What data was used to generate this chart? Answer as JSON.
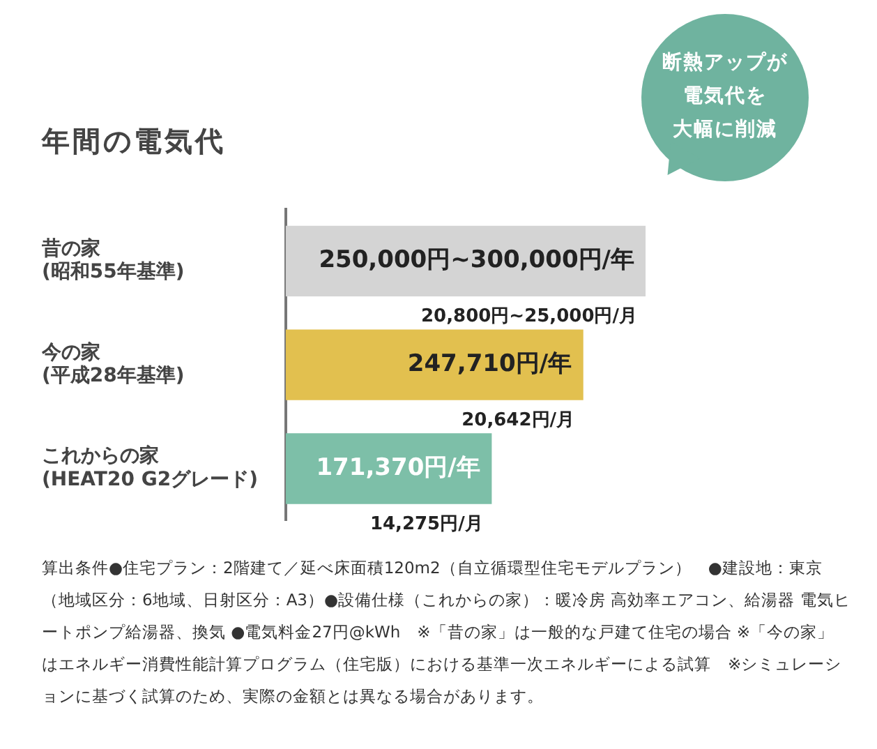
{
  "chart_data": {
    "type": "bar",
    "orientation": "horizontal",
    "title": "年間の電気代",
    "categories": [
      "昔の家\n(昭和55年基準)",
      "今の家\n(平成28年基準)",
      "これからの家\n(HEAT20 G2グレード)"
    ],
    "values": [
      300000,
      247710,
      171370
    ],
    "colors": [
      "#d4d4d4",
      "#e2c04f",
      "#7dbfa8"
    ],
    "value_labels": [
      "250,000円~300,000円/年",
      "247,710円/年",
      "171,370円/年"
    ],
    "xlim": [
      0,
      300000
    ],
    "grid": false,
    "annotations": [
      "断熱アップが",
      "電気代を",
      "大幅に削減",
      {
        "text": "20,800円~25,000円/月",
        "x": 300000,
        "y": "昔の家\n(昭和55年基準)"
      },
      {
        "text": "20,642円/月",
        "x": 247710,
        "y": "今の家\n(平成28年基準)"
      },
      {
        "text": "14,275円/月",
        "x": 171370,
        "y": "これからの家\n(HEAT20 G2グレード)"
      },
      "算出条件●住宅プラン：2階建て／延べ床面積120m2（自立循環型住宅モデルプラン）　●建設地：東京（地域区分：6地域、日射区分：A3）●設備仕様（これからの家）：暖冷房 高効率エアコン、給湯器 電気ヒートポンプ給湯器、換気 ●電気料金27円@kWh　※「昔の家」は一般的な戸建て住宅の場合 ※「今の家」はエネルギー消費性能計算プログラム（住宅版）における基準一次エネルギーによる試算　※シミュレーションに基づく試算のため、実際の金額とは異なる場合があります。"
    ]
  }
}
